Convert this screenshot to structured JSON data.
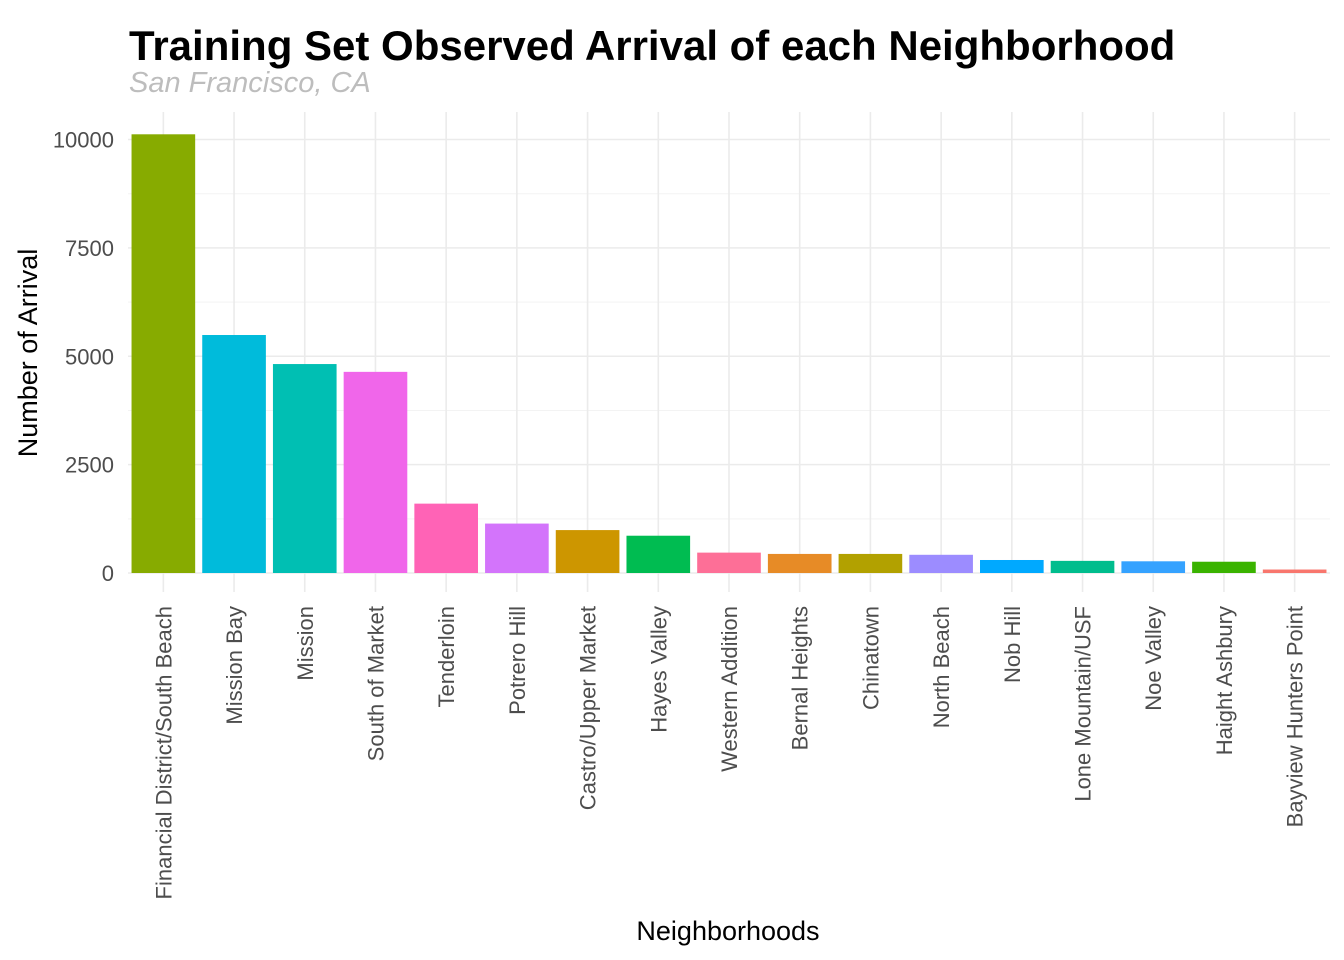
{
  "chart_data": {
    "type": "bar",
    "title": "Training Set Observed Arrival of each Neighborhood",
    "subtitle": "San Francisco, CA",
    "xlabel": "Neighborhoods",
    "ylabel": "Number of Arrival",
    "ylim": [
      -500,
      10500
    ],
    "yticks": [
      0,
      2500,
      5000,
      7500,
      10000
    ],
    "ytick_labels": [
      "0",
      "2500",
      "5000",
      "7500",
      "10000"
    ],
    "grid": true,
    "legend": "none",
    "categories": [
      "Financial District/South Beach",
      "Mission Bay",
      "Mission",
      "South of Market",
      "Tenderloin",
      "Potrero Hill",
      "Castro/Upper Market",
      "Hayes Valley",
      "Western Addition",
      "Bernal Heights",
      "Chinatown",
      "North Beach",
      "Nob Hill",
      "Lone Mountain/USF",
      "Noe Valley",
      "Haight Ashbury",
      "Bayview Hunters Point"
    ],
    "values": [
      10120,
      5490,
      4820,
      4640,
      1600,
      1140,
      990,
      860,
      470,
      440,
      440,
      420,
      300,
      280,
      270,
      260,
      80
    ],
    "colors": [
      "#87ab00",
      "#00bbdb",
      "#00bfb3",
      "#f066ea",
      "#ff63b6",
      "#d374fb",
      "#cd9600",
      "#00bc51",
      "#fd6f97",
      "#e78b26",
      "#b2a100",
      "#9c8cff",
      "#00a9ff",
      "#00bd8d",
      "#35a2ff",
      "#3ab300",
      "#f8766d"
    ]
  }
}
